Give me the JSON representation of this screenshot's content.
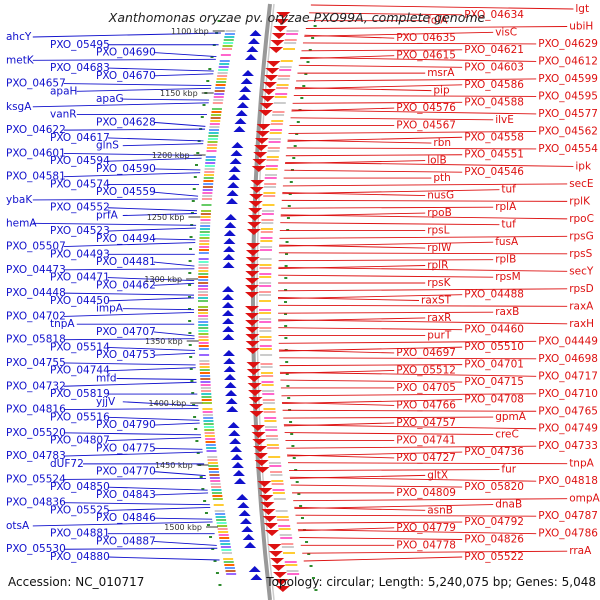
{
  "title": "Xanthomonas oryzae pv. oryzae PXO99A, complete genome",
  "footer": {
    "accession": "Accession: NC_010717",
    "summary": "Topology: circular; Length: 5,240,075 bp; Genes: 5,048"
  },
  "colors": {
    "minus_strand": "#1111cc",
    "plus_strand": "#dd1111",
    "backbone": "#999999",
    "tick": "#2e8b2e"
  },
  "kbp_ticks": [
    "1100 kbp",
    "1150 kbp",
    "1200 kbp",
    "1250 kbp",
    "1300 kbp",
    "1350 kbp",
    "1400 kbp",
    "1450 kbp",
    "1500 kbp"
  ],
  "left_labels": [
    "ahcY",
    "PXO_05495",
    "PXO_04690",
    "metK",
    "PXO_04683",
    "PXO_04670",
    "PXO_04657",
    "apaH",
    "apaG",
    "ksgA",
    "vanR",
    "PXO_04628",
    "PXO_04622",
    "PXO_04617",
    "glnS",
    "PXO_04601",
    "PXO_04594",
    "PXO_04590",
    "PXO_04581",
    "PXO_04574",
    "PXO_04559",
    "ybaK",
    "PXO_04552",
    "prfA",
    "hemA",
    "PXO_04523",
    "PXO_04494",
    "PXO_05507",
    "PXO_04493",
    "PXO_04481",
    "PXO_04473",
    "PXO_04471",
    "PXO_04462",
    "PXO_04448",
    "PXO_04450",
    "impA",
    "PXO_04702",
    "tnpA",
    "PXO_04707",
    "PXO_05818",
    "PXO_05514",
    "PXO_04753",
    "PXO_04755",
    "PXO_04744",
    "mfd",
    "PXO_04732",
    "PXO_05819",
    "yjjV",
    "PXO_04816",
    "PXO_05516",
    "PXO_04790",
    "PXO_05520",
    "PXO_04807",
    "PXO_04775",
    "PXO_04783",
    "dUF72",
    "PXO_04770",
    "PXO_05524",
    "PXO_04850",
    "PXO_04843",
    "PXO_04836",
    "PXO_05525",
    "PXO_04846",
    "otsA",
    "PXO_04881",
    "PXO_04887",
    "PXO_05530",
    "PXO_04880"
  ],
  "right_labels": [
    "lgt",
    "PXO_04634",
    "folA",
    "ubiH",
    "visC",
    "PXO_04635",
    "PXO_04629",
    "PXO_04621",
    "PXO_04615",
    "PXO_04612",
    "PXO_04603",
    "msrA",
    "PXO_04599",
    "PXO_04586",
    "pip",
    "PXO_04595",
    "PXO_04588",
    "PXO_04576",
    "PXO_04577",
    "ilvE",
    "PXO_04567",
    "PXO_04562",
    "PXO_04558",
    "rbn",
    "PXO_04554",
    "PXO_04551",
    "lolB",
    "ipk",
    "PXO_04546",
    "pth",
    "secE",
    "tuf",
    "nusG",
    "rplK",
    "rplA",
    "rpoB",
    "rpoC",
    "tuf",
    "rpsL",
    "rpsG",
    "fusA",
    "rplW",
    "rpsS",
    "rplB",
    "rplR",
    "secY",
    "rpsM",
    "rpsK",
    "rpsD",
    "PXO_04488",
    "raxST",
    "raxA",
    "raxB",
    "raxR",
    "raxH",
    "PXO_04460",
    "purT",
    "PXO_04449",
    "PXO_05510",
    "PXO_04697",
    "PXO_04698",
    "PXO_04701",
    "PXO_05512",
    "PXO_04717",
    "PXO_04715",
    "PXO_04705",
    "PXO_04710",
    "PXO_04708",
    "PXO_04766",
    "PXO_04765",
    "gpmA",
    "PXO_04757",
    "PXO_04749",
    "creC",
    "PXO_04741",
    "PXO_04733",
    "PXO_04736",
    "PXO_04727",
    "tnpA",
    "fur",
    "gltX",
    "PXO_04818",
    "PXO_05820",
    "PXO_04809",
    "ompA",
    "dnaB",
    "asnB",
    "PXO_04787",
    "PXO_04792",
    "PXO_04779",
    "PXO_04786",
    "PXO_04826",
    "PXO_04778",
    "rraA",
    "PXO_05522"
  ]
}
